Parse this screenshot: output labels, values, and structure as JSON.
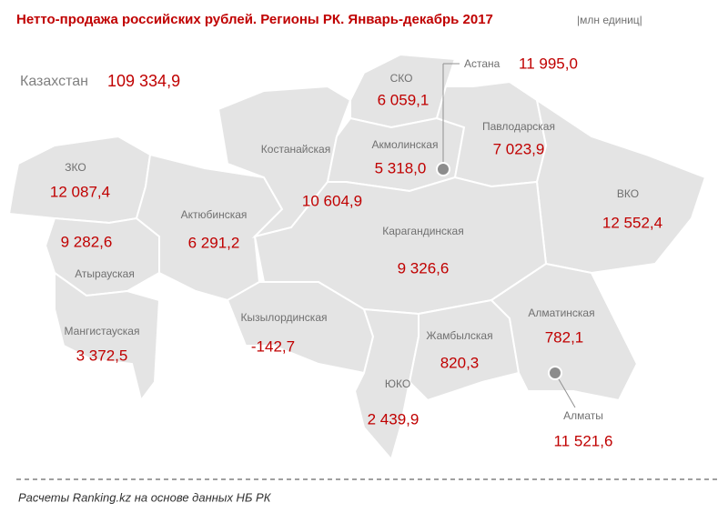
{
  "header": {
    "title": "Нетто-продажа российских рублей. Регионы РК. Январь-декабрь 2017",
    "unit": "|млн единиц|"
  },
  "total": {
    "label": "Казахстан",
    "value": "109 334,9"
  },
  "regions": [
    {
      "name": "СКО",
      "value": "6 059,1"
    },
    {
      "name": "Павлодарская",
      "value": "7 023,9"
    },
    {
      "name": "Акмолинская",
      "value": "5 318,0"
    },
    {
      "name": "Костанайская",
      "value": "10 604,9"
    },
    {
      "name": "ЗКО",
      "value": "12 087,4"
    },
    {
      "name": "ВКО",
      "value": "12 552,4"
    },
    {
      "name": "Актюбинская",
      "value": "6 291,2"
    },
    {
      "name": "Карагандинская",
      "value": "9 326,6"
    },
    {
      "name": "Атырауская",
      "value": "9 282,6"
    },
    {
      "name": "Мангистауская",
      "value": "3 372,5"
    },
    {
      "name": "Кызылординская",
      "value": "-142,7"
    },
    {
      "name": "Алматинская",
      "value": "782,1"
    },
    {
      "name": "Жамбылская",
      "value": "820,3"
    },
    {
      "name": "ЮКО",
      "value": "2 439,9"
    }
  ],
  "cities": [
    {
      "name": "Астана",
      "value": "11 995,0"
    },
    {
      "name": "Алматы",
      "value": "11 521,6"
    }
  ],
  "footer": "Расчеты Ranking.kz на основе данных НБ РК"
}
